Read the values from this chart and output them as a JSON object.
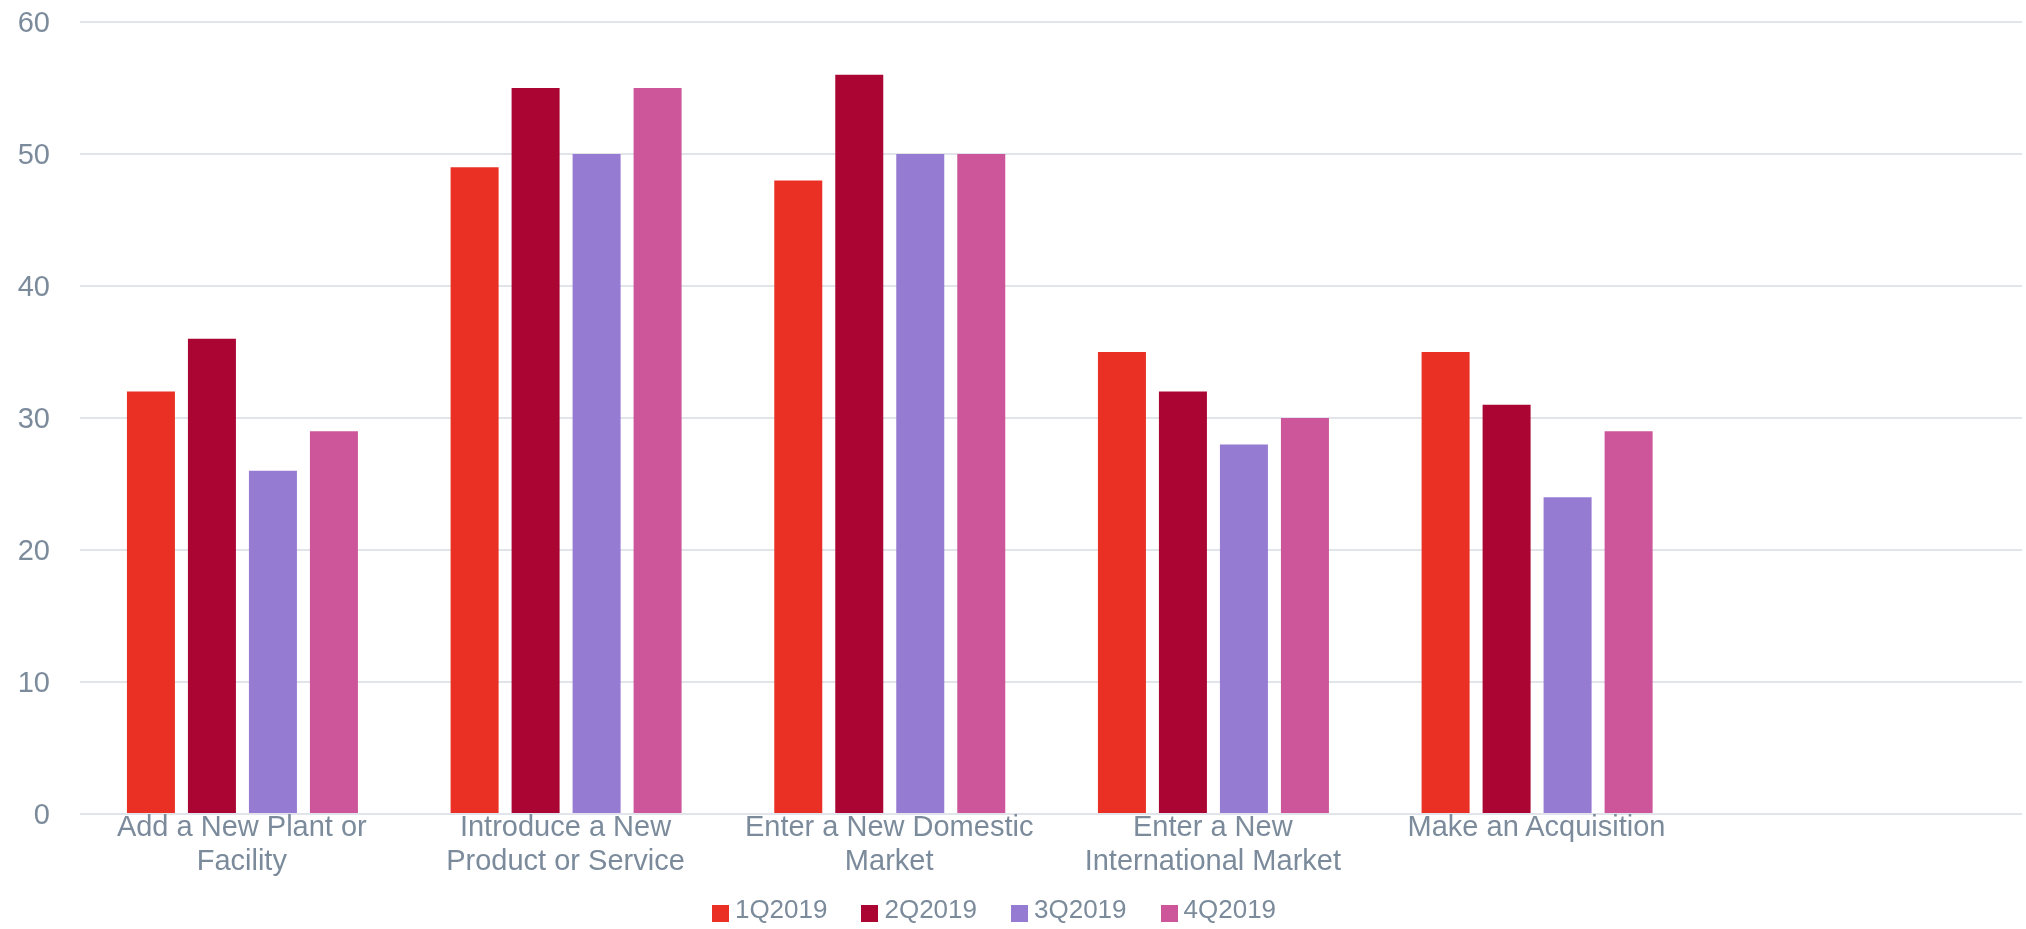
{
  "chart_data": {
    "type": "bar",
    "categories": [
      "Add a New Plant or Facility",
      "Introduce a New Product or Service",
      "Enter a New Domestic Market",
      "Enter a New International Market",
      "Make an Acquisition",
      null
    ],
    "series": [
      {
        "name": "1Q2019",
        "color": "#ea3024",
        "values": [
          32,
          49,
          48,
          35,
          35,
          null
        ]
      },
      {
        "name": "2Q2019",
        "color": "#ab0633",
        "values": [
          36,
          55,
          56,
          32,
          31,
          null
        ]
      },
      {
        "name": "3Q2019",
        "color": "#967bd3",
        "values": [
          26,
          50,
          50,
          28,
          24,
          null
        ]
      },
      {
        "name": "4Q2019",
        "color": "#cc5699",
        "values": [
          29,
          55,
          50,
          30,
          29,
          null
        ]
      }
    ],
    "ylim": [
      0,
      60
    ],
    "yticks": [
      0,
      10,
      20,
      30,
      40,
      50,
      60
    ],
    "grid": "y",
    "legend": "bottom"
  }
}
